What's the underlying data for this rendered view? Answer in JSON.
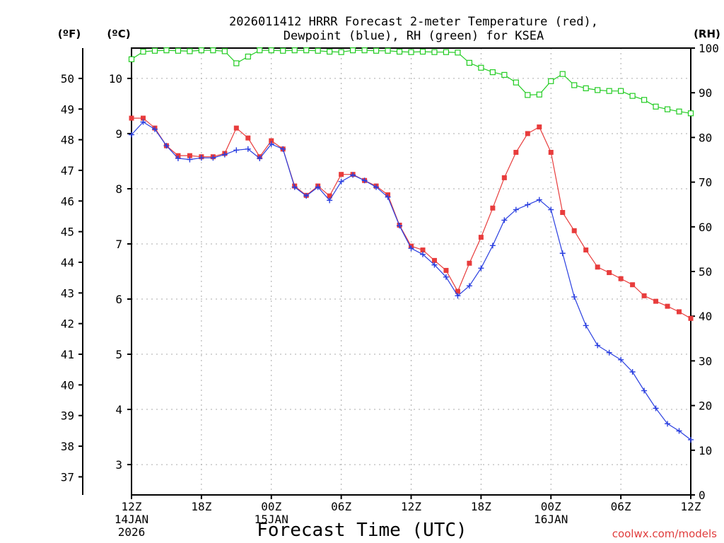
{
  "chart_data": {
    "type": "line",
    "title_line1": "2026011412 HRRR Forecast 2-meter Temperature (red),",
    "title_line2": "Dewpoint (blue), RH (green) for KSEA",
    "xlabel": "Forecast Time (UTC)",
    "credit": "coolwx.com/models",
    "units": {
      "fahrenheit": "(ºF)",
      "celsius": "(ºC)",
      "rh": "(RH)"
    },
    "x_range_hours": [
      0,
      48
    ],
    "ylim_c": [
      2.45,
      10.55
    ],
    "ylim_f": [
      36.41,
      50.99
    ],
    "ylim_rh": [
      0,
      100
    ],
    "yticks_c": [
      3,
      4,
      5,
      6,
      7,
      8,
      9,
      10
    ],
    "yticks_f": [
      37,
      38,
      39,
      40,
      41,
      42,
      43,
      44,
      45,
      46,
      47,
      48,
      49,
      50
    ],
    "yticks_rh": [
      0,
      10,
      20,
      30,
      40,
      50,
      60,
      70,
      80,
      90,
      100
    ],
    "xticks": [
      {
        "h": 0,
        "label": "12Z",
        "sub1": "14JAN",
        "sub2": "2026"
      },
      {
        "h": 6,
        "label": "18Z",
        "sub1": "",
        "sub2": ""
      },
      {
        "h": 12,
        "label": "00Z",
        "sub1": "15JAN",
        "sub2": ""
      },
      {
        "h": 18,
        "label": "06Z",
        "sub1": "",
        "sub2": ""
      },
      {
        "h": 24,
        "label": "12Z",
        "sub1": "",
        "sub2": ""
      },
      {
        "h": 30,
        "label": "18Z",
        "sub1": "",
        "sub2": ""
      },
      {
        "h": 36,
        "label": "00Z",
        "sub1": "16JAN",
        "sub2": ""
      },
      {
        "h": 42,
        "label": "06Z",
        "sub1": "",
        "sub2": ""
      },
      {
        "h": 48,
        "label": "12Z",
        "sub1": "",
        "sub2": ""
      }
    ],
    "series": [
      {
        "name": "Temperature",
        "unit": "C",
        "color": "#e83c3c",
        "marker": "filled-square",
        "values": [
          9.28,
          9.28,
          9.1,
          8.78,
          8.6,
          8.6,
          8.58,
          8.58,
          8.64,
          9.1,
          8.92,
          8.58,
          8.87,
          8.72,
          8.05,
          7.88,
          8.05,
          7.87,
          8.26,
          8.26,
          8.15,
          8.05,
          7.89,
          7.34,
          6.96,
          6.89,
          6.7,
          6.52,
          6.14,
          6.65,
          7.12,
          7.65,
          8.2,
          8.66,
          9.0,
          9.12,
          8.66,
          7.57,
          7.24,
          6.89,
          6.58,
          6.48,
          6.37,
          6.26,
          6.06,
          5.96,
          5.87,
          5.77,
          5.65
        ]
      },
      {
        "name": "Dewpoint",
        "unit": "C",
        "color": "#2a3fe0",
        "marker": "plus",
        "values": [
          8.98,
          9.21,
          9.08,
          8.78,
          8.55,
          8.53,
          8.56,
          8.56,
          8.62,
          8.7,
          8.72,
          8.55,
          8.81,
          8.72,
          8.03,
          7.87,
          8.03,
          7.79,
          8.13,
          8.25,
          8.15,
          8.03,
          7.85,
          7.33,
          6.92,
          6.81,
          6.62,
          6.4,
          6.06,
          6.24,
          6.56,
          6.97,
          7.43,
          7.62,
          7.71,
          7.8,
          7.62,
          6.83,
          6.04,
          5.52,
          5.16,
          5.03,
          4.9,
          4.68,
          4.34,
          4.02,
          3.74,
          3.61,
          3.45
        ]
      },
      {
        "name": "RH",
        "unit": "%",
        "color": "#22cc22",
        "marker": "open-square",
        "values": [
          97.5,
          99.2,
          99.4,
          99.5,
          99.4,
          99.3,
          99.5,
          99.5,
          99.3,
          96.6,
          98.1,
          99.5,
          99.5,
          99.4,
          99.5,
          99.5,
          99.4,
          99.2,
          99.1,
          99.5,
          99.5,
          99.4,
          99.4,
          99.2,
          99.1,
          99.2,
          99.1,
          99.1,
          99.0,
          96.7,
          95.6,
          94.6,
          94.0,
          92.3,
          89.5,
          89.6,
          92.6,
          94.2,
          91.7,
          91.0,
          90.6,
          90.4,
          90.4,
          89.3,
          88.4,
          86.9,
          86.3,
          85.8,
          85.4
        ]
      }
    ]
  }
}
